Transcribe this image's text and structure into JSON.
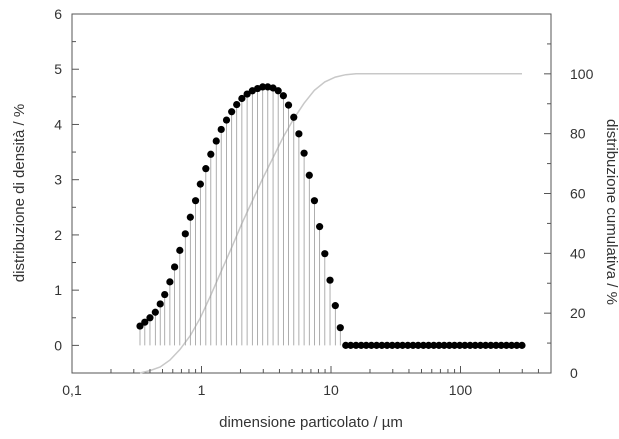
{
  "chart_data": {
    "type": "scatter",
    "title": "",
    "xlabel": "dimensione particolato / µm",
    "ylabel": "distribuzione di densità / %",
    "y2label": "distribuzione cumulativa / %",
    "xscale": "log",
    "xlim": [
      0.1,
      500
    ],
    "ylim": [
      -0.5,
      6
    ],
    "y2lim": [
      0,
      120
    ],
    "x_ticks": [
      {
        "value": 0.1,
        "label": "0,1"
      },
      {
        "value": 1,
        "label": "1"
      },
      {
        "value": 10,
        "label": "10"
      },
      {
        "value": 100,
        "label": "100"
      }
    ],
    "y_ticks": [
      {
        "value": 0,
        "label": "0"
      },
      {
        "value": 1,
        "label": "1"
      },
      {
        "value": 2,
        "label": "2"
      },
      {
        "value": 3,
        "label": "3"
      },
      {
        "value": 4,
        "label": "4"
      },
      {
        "value": 5,
        "label": "5"
      },
      {
        "value": 6,
        "label": "6"
      }
    ],
    "y2_ticks": [
      {
        "value": 0,
        "label": "0"
      },
      {
        "value": 20,
        "label": "20"
      },
      {
        "value": 40,
        "label": "40"
      },
      {
        "value": 60,
        "label": "60"
      },
      {
        "value": 80,
        "label": "80"
      },
      {
        "value": 100,
        "label": "100"
      }
    ],
    "grid": false,
    "series": [
      {
        "style": "points with drop lines",
        "axis": "left",
        "color": "#000000",
        "x": [
          0.335,
          0.365,
          0.4,
          0.44,
          0.48,
          0.52,
          0.57,
          0.62,
          0.68,
          0.75,
          0.82,
          0.9,
          0.98,
          1.08,
          1.18,
          1.3,
          1.42,
          1.56,
          1.71,
          1.87,
          2.05,
          2.25,
          2.47,
          2.71,
          2.97,
          3.25,
          3.57,
          3.91,
          4.29,
          4.7,
          5.16,
          5.65,
          6.2,
          6.8,
          7.45,
          8.17,
          8.96,
          9.83,
          10.8,
          11.8,
          13.0,
          14.2,
          15.6,
          17.1,
          18.7,
          20.5,
          22.5,
          24.7,
          27.1,
          29.7,
          32.6,
          35.7,
          39.2,
          43.0,
          47.1,
          51.7,
          56.7,
          62.2,
          68.2,
          74.8,
          82.0,
          89.9,
          98.6,
          108.1,
          118.6,
          130.0,
          142.6,
          156.4,
          171.5,
          188.1,
          206.3,
          226.2,
          248.1,
          272.1,
          298.4
        ],
        "y": [
          0.35,
          0.42,
          0.5,
          0.6,
          0.75,
          0.92,
          1.15,
          1.42,
          1.72,
          2.02,
          2.32,
          2.62,
          2.92,
          3.2,
          3.46,
          3.7,
          3.91,
          4.08,
          4.23,
          4.36,
          4.47,
          4.55,
          4.61,
          4.65,
          4.68,
          4.68,
          4.66,
          4.61,
          4.52,
          4.35,
          4.13,
          3.83,
          3.48,
          3.08,
          2.62,
          2.15,
          1.66,
          1.18,
          0.72,
          0.32,
          0.0,
          0.0,
          0.0,
          0.0,
          0.0,
          0.0,
          0.0,
          0.0,
          0.0,
          0.0,
          0.0,
          0.0,
          0.0,
          0.0,
          0.0,
          0.0,
          0.0,
          0.0,
          0.0,
          0.0,
          0.0,
          0.0,
          0.0,
          0.0,
          0.0,
          0.0,
          0.0,
          0.0,
          0.0,
          0.0,
          0.0,
          0.0,
          0.0,
          0.0,
          0.0
        ]
      },
      {
        "style": "line",
        "axis": "right",
        "color": "#c8c8c8",
        "x": [
          0.335,
          0.4,
          0.48,
          0.57,
          0.68,
          0.82,
          0.98,
          1.18,
          1.42,
          1.71,
          2.05,
          2.47,
          2.97,
          3.57,
          4.29,
          5.16,
          6.2,
          7.45,
          8.96,
          10.8,
          13.0,
          15.6,
          17.1,
          20.5,
          50,
          100,
          298.4
        ],
        "y": [
          0.0,
          0.8,
          2.0,
          4.3,
          7.8,
          12.5,
          18.5,
          26.0,
          34.0,
          42.0,
          50.0,
          57.5,
          65.0,
          72.0,
          79.0,
          85.0,
          90.2,
          94.5,
          97.3,
          98.9,
          99.7,
          100.0,
          100.0,
          100.0,
          100.0,
          100.0,
          100.0
        ]
      }
    ]
  }
}
